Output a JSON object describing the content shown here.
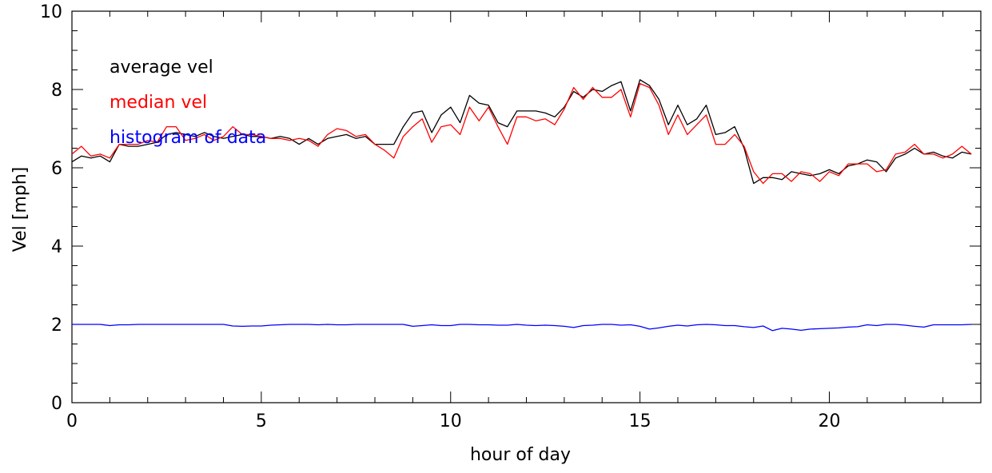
{
  "chart_data": {
    "type": "line",
    "title": "",
    "xlabel": "hour of day",
    "ylabel": "Vel [mph]",
    "xlim": [
      0,
      24
    ],
    "ylim": [
      0,
      10
    ],
    "x_ticks": [
      0,
      5,
      10,
      15,
      20
    ],
    "y_ticks": [
      0,
      2,
      4,
      6,
      8,
      10
    ],
    "x_tick_labels": [
      "0",
      "5",
      "10",
      "15",
      "20"
    ],
    "y_tick_labels": [
      "0",
      "2",
      "4",
      "6",
      "8",
      "10"
    ],
    "grid": false,
    "legend_position": "top-left",
    "series": [
      {
        "name": "average vel",
        "color": "#000000",
        "x": [
          0,
          0.25,
          0.5,
          0.75,
          1,
          1.25,
          1.5,
          1.75,
          2,
          2.25,
          2.5,
          2.75,
          3,
          3.25,
          3.5,
          3.75,
          4,
          4.25,
          4.5,
          4.75,
          5,
          5.25,
          5.5,
          5.75,
          6,
          6.25,
          6.5,
          6.75,
          7,
          7.25,
          7.5,
          7.75,
          8,
          8.25,
          8.5,
          8.75,
          9,
          9.25,
          9.5,
          9.75,
          10,
          10.25,
          10.5,
          10.75,
          11,
          11.25,
          11.5,
          11.75,
          12,
          12.25,
          12.5,
          12.75,
          13,
          13.25,
          13.5,
          13.75,
          14,
          14.25,
          14.5,
          14.75,
          15,
          15.25,
          15.5,
          15.75,
          16,
          16.25,
          16.5,
          16.75,
          17,
          17.25,
          17.5,
          17.75,
          18,
          18.25,
          18.5,
          18.75,
          19,
          19.25,
          19.5,
          19.75,
          20,
          20.25,
          20.5,
          20.75,
          21,
          21.25,
          21.5,
          21.75,
          22,
          22.25,
          22.5,
          22.75,
          23,
          23.25,
          23.5,
          23.75
        ],
        "values": [
          6.15,
          6.3,
          6.25,
          6.3,
          6.15,
          6.6,
          6.55,
          6.55,
          6.6,
          6.65,
          6.85,
          6.9,
          6.85,
          6.8,
          6.9,
          6.8,
          6.75,
          6.8,
          6.85,
          6.8,
          6.8,
          6.75,
          6.8,
          6.75,
          6.6,
          6.75,
          6.6,
          6.75,
          6.8,
          6.85,
          6.75,
          6.8,
          6.6,
          6.6,
          6.6,
          7.05,
          7.4,
          7.45,
          6.9,
          7.35,
          7.55,
          7.15,
          7.85,
          7.65,
          7.6,
          7.15,
          7.05,
          7.45,
          7.45,
          7.45,
          7.4,
          7.3,
          7.55,
          7.95,
          7.8,
          8.0,
          7.95,
          8.1,
          8.2,
          7.45,
          8.25,
          8.1,
          7.75,
          7.1,
          7.6,
          7.1,
          7.25,
          7.6,
          6.85,
          6.9,
          7.05,
          6.5,
          5.6,
          5.75,
          5.75,
          5.7,
          5.9,
          5.85,
          5.8,
          5.85,
          5.95,
          5.85,
          6.05,
          6.1,
          6.2,
          6.15,
          5.9,
          6.25,
          6.35,
          6.5,
          6.35,
          6.4,
          6.3,
          6.25,
          6.4,
          6.35
        ]
      },
      {
        "name": "median vel",
        "color": "#ff0000",
        "x": [
          0,
          0.25,
          0.5,
          0.75,
          1,
          1.25,
          1.5,
          1.75,
          2,
          2.25,
          2.5,
          2.75,
          3,
          3.25,
          3.5,
          3.75,
          4,
          4.25,
          4.5,
          4.75,
          5,
          5.25,
          5.5,
          5.75,
          6,
          6.25,
          6.5,
          6.75,
          7,
          7.25,
          7.5,
          7.75,
          8,
          8.25,
          8.5,
          8.75,
          9,
          9.25,
          9.5,
          9.75,
          10,
          10.25,
          10.5,
          10.75,
          11,
          11.25,
          11.5,
          11.75,
          12,
          12.25,
          12.5,
          12.75,
          13,
          13.25,
          13.5,
          13.75,
          14,
          14.25,
          14.5,
          14.75,
          15,
          15.25,
          15.5,
          15.75,
          16,
          16.25,
          16.5,
          16.75,
          17,
          17.25,
          17.5,
          17.75,
          18,
          18.25,
          18.5,
          18.75,
          19,
          19.25,
          19.5,
          19.75,
          20,
          20.25,
          20.5,
          20.75,
          21,
          21.25,
          21.5,
          21.75,
          22,
          22.25,
          22.5,
          22.75,
          23,
          23.25,
          23.5,
          23.75
        ],
        "values": [
          6.35,
          6.55,
          6.3,
          6.35,
          6.25,
          6.6,
          6.6,
          6.6,
          6.7,
          6.65,
          7.05,
          7.05,
          6.7,
          6.75,
          6.85,
          6.7,
          6.8,
          7.05,
          6.85,
          6.85,
          6.8,
          6.75,
          6.75,
          6.7,
          6.75,
          6.7,
          6.55,
          6.85,
          7.0,
          6.95,
          6.8,
          6.85,
          6.6,
          6.45,
          6.25,
          6.8,
          7.05,
          7.25,
          6.65,
          7.05,
          7.1,
          6.85,
          7.55,
          7.2,
          7.55,
          7.05,
          6.6,
          7.3,
          7.3,
          7.2,
          7.25,
          7.1,
          7.5,
          8.05,
          7.75,
          8.05,
          7.8,
          7.8,
          8.0,
          7.3,
          8.15,
          8.05,
          7.6,
          6.85,
          7.35,
          6.85,
          7.1,
          7.35,
          6.6,
          6.6,
          6.85,
          6.55,
          5.9,
          5.6,
          5.85,
          5.85,
          5.65,
          5.9,
          5.85,
          5.65,
          5.9,
          5.8,
          6.1,
          6.1,
          6.1,
          5.9,
          5.95,
          6.35,
          6.4,
          6.6,
          6.35,
          6.35,
          6.25,
          6.35,
          6.55,
          6.35
        ]
      },
      {
        "name": "histogram of data",
        "color": "#0000ff",
        "x": [
          0,
          0.25,
          0.5,
          0.75,
          1,
          1.25,
          1.5,
          1.75,
          2,
          2.25,
          2.5,
          2.75,
          3,
          3.25,
          3.5,
          3.75,
          4,
          4.25,
          4.5,
          4.75,
          5,
          5.25,
          5.5,
          5.75,
          6,
          6.25,
          6.5,
          6.75,
          7,
          7.25,
          7.5,
          7.75,
          8,
          8.25,
          8.5,
          8.75,
          9,
          9.25,
          9.5,
          9.75,
          10,
          10.25,
          10.5,
          10.75,
          11,
          11.25,
          11.5,
          11.75,
          12,
          12.25,
          12.5,
          12.75,
          13,
          13.25,
          13.5,
          13.75,
          14,
          14.25,
          14.5,
          14.75,
          15,
          15.25,
          15.5,
          15.75,
          16,
          16.25,
          16.5,
          16.75,
          17,
          17.25,
          17.5,
          17.75,
          18,
          18.25,
          18.5,
          18.75,
          19,
          19.25,
          19.5,
          19.75,
          20,
          20.25,
          20.5,
          20.75,
          21,
          21.25,
          21.5,
          21.75,
          22,
          22.25,
          22.5,
          22.75,
          23,
          23.25,
          23.5,
          23.75
        ],
        "values": [
          2.0,
          2.0,
          2.0,
          2.0,
          1.97,
          1.99,
          1.99,
          2.0,
          2.0,
          2.0,
          2.0,
          2.0,
          2.0,
          2.0,
          2.0,
          2.0,
          2.0,
          1.96,
          1.95,
          1.96,
          1.96,
          1.98,
          1.99,
          2.0,
          2.0,
          2.0,
          1.99,
          2.0,
          1.99,
          1.99,
          2.0,
          2.0,
          2.0,
          2.0,
          2.0,
          2.0,
          1.95,
          1.97,
          1.99,
          1.97,
          1.97,
          2.0,
          2.0,
          1.99,
          1.99,
          1.98,
          1.98,
          2.0,
          1.98,
          1.97,
          1.98,
          1.97,
          1.95,
          1.92,
          1.97,
          1.98,
          2.0,
          2.0,
          1.98,
          1.99,
          1.95,
          1.88,
          1.91,
          1.95,
          1.98,
          1.96,
          1.99,
          2.0,
          1.99,
          1.97,
          1.97,
          1.94,
          1.92,
          1.96,
          1.84,
          1.9,
          1.88,
          1.85,
          1.88,
          1.89,
          1.9,
          1.91,
          1.93,
          1.94,
          1.99,
          1.97,
          2.0,
          2.0,
          1.98,
          1.95,
          1.93,
          1.99,
          1.99,
          1.99,
          1.99,
          2.0
        ]
      }
    ]
  }
}
